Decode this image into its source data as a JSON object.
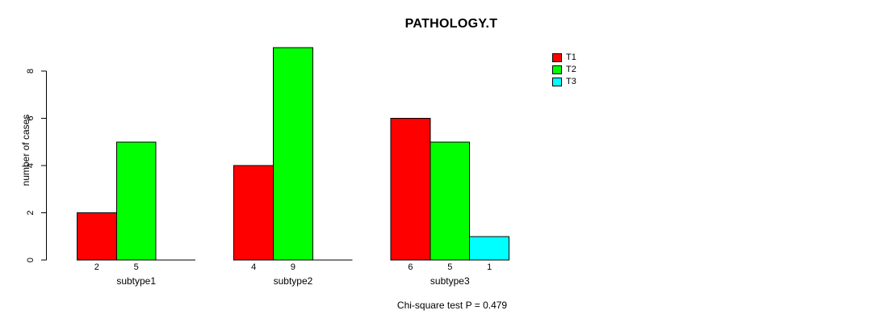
{
  "chart_data": {
    "type": "bar",
    "grouped": true,
    "title": "PATHOLOGY.T",
    "xlabel": "",
    "ylabel": "number of cases",
    "categories": [
      "subtype1",
      "subtype2",
      "subtype3"
    ],
    "series": [
      {
        "name": "T1",
        "color": "#FF0000",
        "values": [
          2,
          4,
          6
        ]
      },
      {
        "name": "T2",
        "color": "#00FF00",
        "values": [
          5,
          9,
          5
        ]
      },
      {
        "name": "T3",
        "color": "#00FFFF",
        "values": [
          0,
          0,
          1
        ]
      }
    ],
    "bar_value_labels": [
      [
        "2",
        "5",
        ""
      ],
      [
        "4",
        "9",
        ""
      ],
      [
        "6",
        "5",
        "1"
      ]
    ],
    "yticks": [
      "0",
      "2",
      "4",
      "6",
      "8"
    ],
    "ylim": [
      0,
      9
    ],
    "grid": false,
    "legend_position": "top-right",
    "annotation": "Chi-square test P = 0.479",
    "axis_color": "#000000",
    "bar_border_color": "#000000",
    "background_color": "#FFFFFF"
  }
}
